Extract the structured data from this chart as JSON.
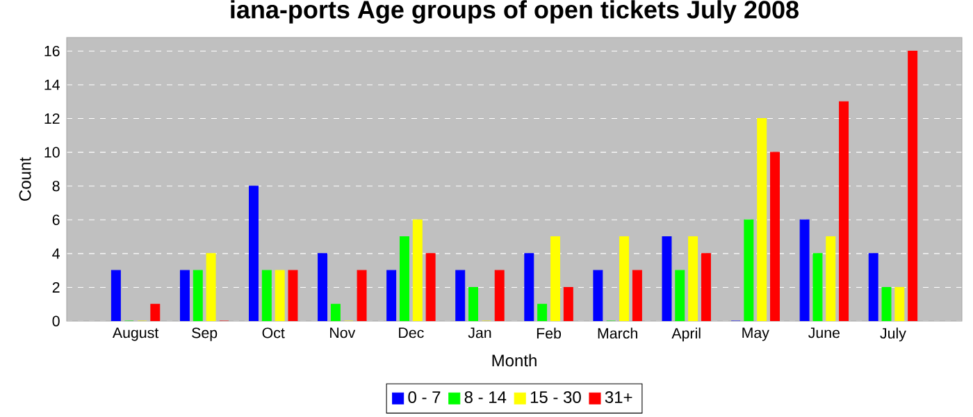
{
  "chart_data": {
    "type": "bar",
    "title": "iana-ports Age groups of open tickets July 2008",
    "xlabel": "Month",
    "ylabel": "Count",
    "categories": [
      "August",
      "Sep",
      "Oct",
      "Nov",
      "Dec",
      "Jan",
      "Feb",
      "March",
      "April",
      "May",
      "June",
      "July"
    ],
    "series": [
      {
        "name": "0 - 7",
        "color": "#0000ff",
        "values": [
          3,
          3,
          8,
          4,
          3,
          3,
          4,
          3,
          5,
          0,
          6,
          4
        ]
      },
      {
        "name": "8 - 14",
        "color": "#00ff00",
        "values": [
          0,
          3,
          3,
          1,
          5,
          2,
          1,
          0,
          3,
          6,
          4,
          2
        ]
      },
      {
        "name": "15 - 30",
        "color": "#ffff00",
        "values": [
          0,
          4,
          3,
          0,
          6,
          0,
          5,
          5,
          5,
          12,
          5,
          2
        ]
      },
      {
        "name": "31+",
        "color": "#ff0000",
        "values": [
          1,
          0,
          3,
          3,
          4,
          3,
          2,
          3,
          4,
          10,
          13,
          16
        ]
      }
    ],
    "ylim": [
      0,
      16.8
    ],
    "yticks": [
      0,
      2,
      4,
      6,
      8,
      10,
      12,
      14,
      16
    ],
    "grid": "y",
    "legend": "bottom"
  }
}
